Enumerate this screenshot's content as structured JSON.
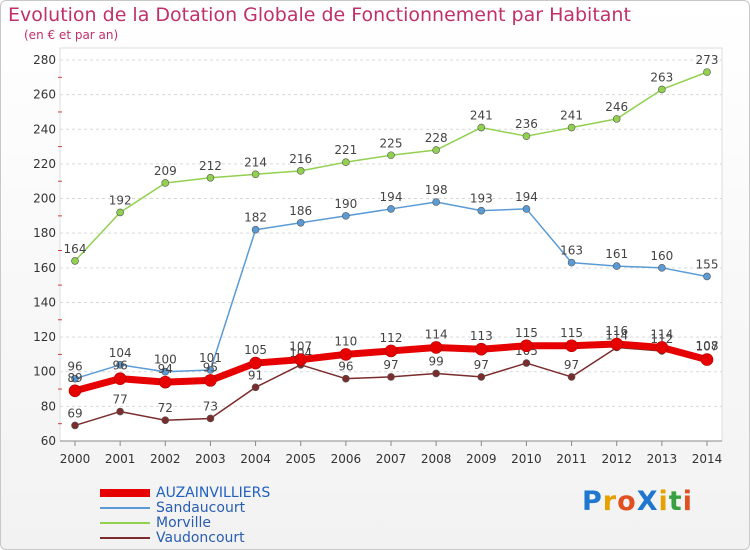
{
  "chart_data": {
    "type": "line",
    "title": "Evolution de la Dotation Globale de Fonctionnement par Habitant",
    "subtitle": "(en € et par an)",
    "x": [
      "2000",
      "2001",
      "2002",
      "2003",
      "2004",
      "2005",
      "2006",
      "2007",
      "2008",
      "2009",
      "2010",
      "2011",
      "2012",
      "2013",
      "2014"
    ],
    "ylim": [
      60,
      280
    ],
    "yticks": [
      "60",
      "80",
      "100",
      "120",
      "140",
      "160",
      "180",
      "200",
      "220",
      "240",
      "260",
      "280"
    ],
    "grid": "horizontal dashed",
    "legend_position": "bottom-left",
    "series": [
      {
        "name": "AUZAINVILLIERS",
        "color": "#e60000",
        "values": [
          89,
          96,
          94,
          95,
          105,
          107,
          110,
          112,
          114,
          113,
          115,
          115,
          116,
          114,
          107
        ]
      },
      {
        "name": "Sandaucourt",
        "color": "#5b9bd5",
        "values": [
          96,
          104,
          100,
          101,
          182,
          186,
          190,
          194,
          198,
          193,
          194,
          163,
          161,
          160,
          155
        ]
      },
      {
        "name": "Morville",
        "color": "#92d050",
        "values": [
          164,
          192,
          209,
          212,
          214,
          216,
          221,
          225,
          228,
          241,
          236,
          241,
          246,
          263,
          273
        ]
      },
      {
        "name": "Vaudoncourt",
        "color": "#7b2c2c",
        "values": [
          69,
          77,
          72,
          73,
          91,
          104,
          96,
          97,
          99,
          97,
          105,
          97,
          114,
          112,
          108
        ]
      }
    ]
  },
  "logo": {
    "text": "ProXiti",
    "letters": [
      "P",
      "r",
      "o",
      "X",
      "i",
      "t",
      "i"
    ],
    "colors": [
      "#1f77d0",
      "#e6a100",
      "#e05020",
      "#1f77d0",
      "#e6a100",
      "#3aa040",
      "#e05020"
    ]
  }
}
